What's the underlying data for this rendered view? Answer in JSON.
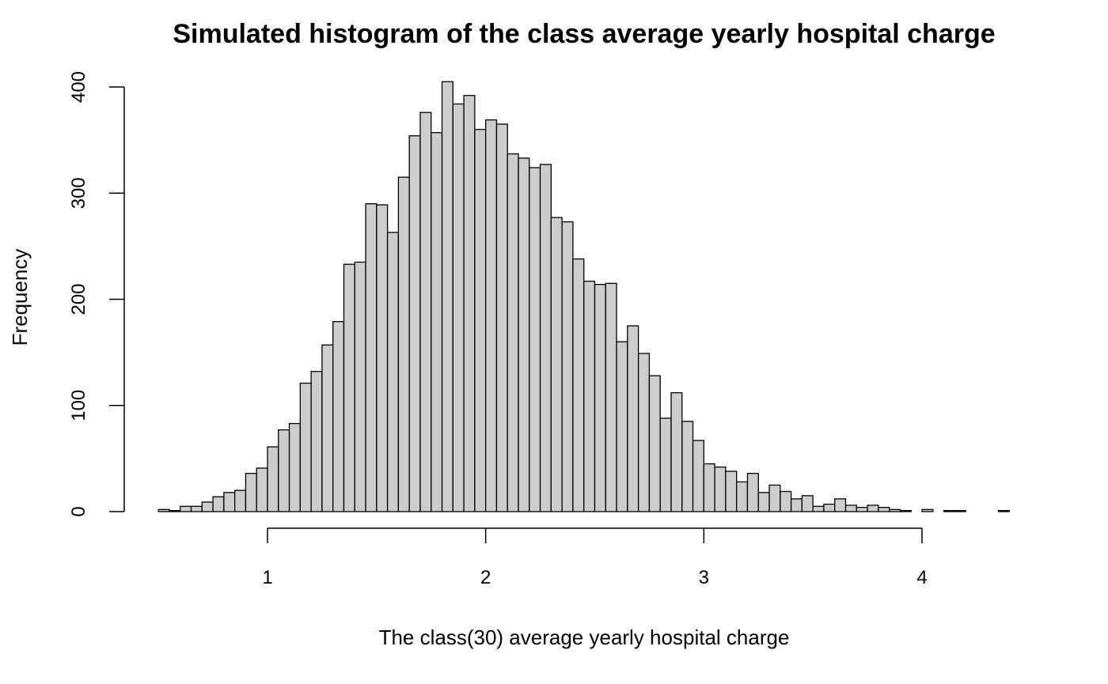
{
  "chart_data": {
    "type": "bar",
    "title": "Simulated histogram of the class average yearly hospital charge",
    "xlabel": "The class(30) average yearly hospital charge",
    "ylabel": "Frequency",
    "bin_width": 0.05,
    "bin_start": 0.5,
    "xlim": [
      0.5,
      4.4
    ],
    "ylim": [
      0,
      400
    ],
    "x_ticks": [
      1,
      2,
      3,
      4
    ],
    "y_ticks": [
      0,
      100,
      200,
      300,
      400
    ],
    "x_tick_labels": [
      "1",
      "2",
      "3",
      "4"
    ],
    "y_tick_labels": [
      "0",
      "100",
      "200",
      "300",
      "400"
    ],
    "values": [
      2,
      1,
      5,
      5,
      9,
      14,
      18,
      20,
      36,
      41,
      61,
      77,
      83,
      121,
      132,
      157,
      179,
      233,
      235,
      290,
      289,
      263,
      315,
      354,
      376,
      357,
      405,
      384,
      392,
      360,
      369,
      365,
      337,
      333,
      324,
      327,
      277,
      273,
      238,
      217,
      214,
      215,
      160,
      175,
      149,
      128,
      88,
      112,
      85,
      67,
      45,
      42,
      38,
      28,
      36,
      18,
      25,
      19,
      12,
      15,
      5,
      7,
      12,
      6,
      4,
      6,
      4,
      2,
      1,
      0,
      2,
      0,
      1,
      1,
      0,
      0,
      0,
      1
    ],
    "grid": false,
    "bar_color": "#cccccc",
    "edge_color": "#000000"
  }
}
